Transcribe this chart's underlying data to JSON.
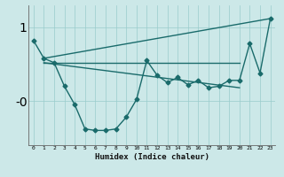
{
  "xlabel": "Humidex (Indice chaleur)",
  "bg_color": "#cce8e8",
  "grid_color": "#99cccc",
  "line_color": "#1a6b6b",
  "xlim": [
    -0.5,
    23.5
  ],
  "ylim": [
    -0.6,
    1.3
  ],
  "yticks": [
    1.0,
    0.0
  ],
  "ytick_labels": [
    "1",
    "-0"
  ],
  "xticks": [
    0,
    1,
    2,
    3,
    4,
    5,
    6,
    7,
    8,
    9,
    10,
    11,
    12,
    13,
    14,
    15,
    16,
    17,
    18,
    19,
    20,
    21,
    22,
    23
  ],
  "series": [
    {
      "x": [
        0,
        1,
        2,
        3,
        4,
        5,
        6,
        7,
        8,
        9,
        10,
        11,
        12,
        13,
        14,
        15,
        16,
        17,
        18,
        19,
        20,
        21,
        22,
        23
      ],
      "y": [
        0.82,
        0.58,
        0.52,
        0.2,
        -0.05,
        -0.38,
        -0.4,
        -0.4,
        -0.38,
        -0.22,
        0.02,
        0.55,
        0.35,
        0.25,
        0.32,
        0.22,
        0.28,
        0.18,
        0.2,
        0.28,
        0.28,
        0.78,
        0.38,
        1.12
      ],
      "marker": "D",
      "markersize": 2.5,
      "linewidth": 1.0
    },
    {
      "x": [
        1,
        23
      ],
      "y": [
        0.58,
        1.12
      ],
      "marker": null,
      "markersize": 0,
      "linewidth": 1.0
    },
    {
      "x": [
        1,
        20
      ],
      "y": [
        0.52,
        0.52
      ],
      "marker": null,
      "markersize": 0,
      "linewidth": 1.0
    },
    {
      "x": [
        1,
        20
      ],
      "y": [
        0.52,
        0.18
      ],
      "marker": null,
      "markersize": 0,
      "linewidth": 1.0
    }
  ]
}
